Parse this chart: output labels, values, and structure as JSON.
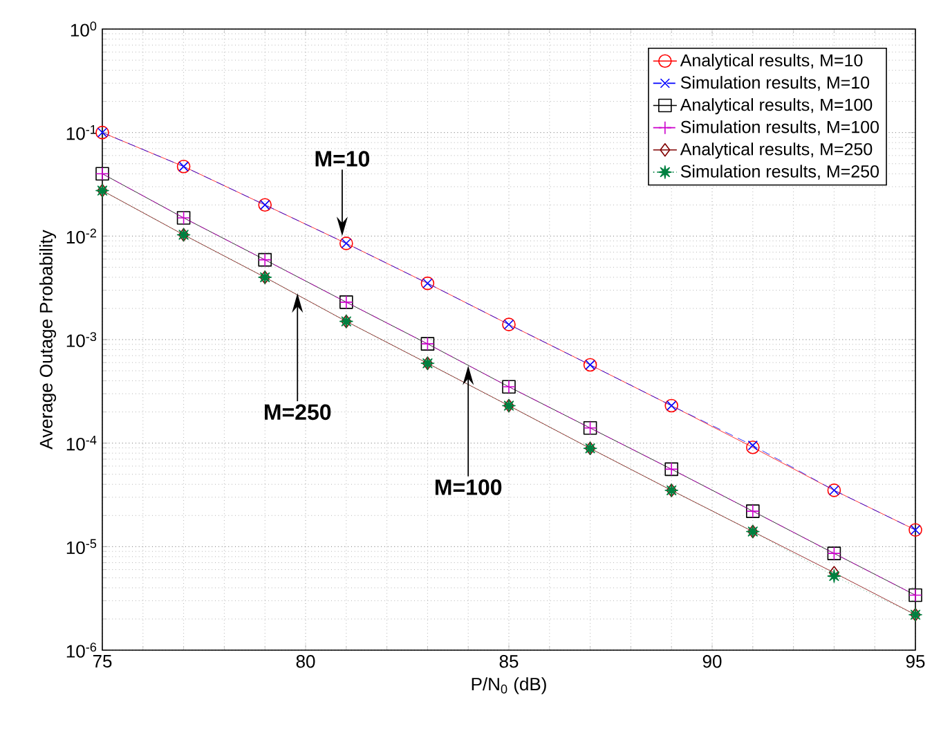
{
  "chart_data": {
    "type": "line",
    "xlabel": "P/N$_{0}$ (dB)",
    "ylabel": "Average Outage Probability",
    "x": [
      75,
      77,
      79,
      81,
      83,
      85,
      87,
      89,
      91,
      93,
      95
    ],
    "series": [
      {
        "name": "Analytical results, M=10",
        "color": "#ff0000",
        "marker": "circle",
        "line_style": "solid",
        "values": [
          0.1,
          0.047,
          0.02,
          0.0085,
          0.0035,
          0.0014,
          0.00057,
          0.00023,
          9.1e-05,
          3.5e-05,
          1.45e-05
        ]
      },
      {
        "name": "Simulation results, M=10",
        "color": "#0000ff",
        "marker": "cross",
        "line_style": "dashed",
        "values": [
          0.1,
          0.047,
          0.02,
          0.0085,
          0.0035,
          0.0014,
          0.00057,
          0.00023,
          9.5e-05,
          3.5e-05,
          1.45e-05
        ]
      },
      {
        "name": "Analytical results, M=100",
        "color": "#000000",
        "marker": "square",
        "line_style": "solid",
        "values": [
          0.04,
          0.015,
          0.0059,
          0.0023,
          0.00091,
          0.00035,
          0.00014,
          5.6e-05,
          2.2e-05,
          8.6e-06,
          3.4e-06
        ]
      },
      {
        "name": "Simulation results, M=100",
        "color": "#cc00cc",
        "marker": "plus",
        "line_style": "dashed",
        "values": [
          0.04,
          0.015,
          0.0059,
          0.0023,
          0.00091,
          0.00035,
          0.00014,
          5.6e-05,
          2.2e-05,
          8.6e-06,
          3.4e-06
        ]
      },
      {
        "name": "Analytical results, M=250",
        "color": "#800000",
        "marker": "diamond",
        "line_style": "solid",
        "values": [
          0.0275,
          0.0103,
          0.004,
          0.0015,
          0.00059,
          0.00023,
          8.9e-05,
          3.5e-05,
          1.4e-05,
          5.6e-06,
          2.2e-06
        ]
      },
      {
        "name": "Simulation results, M=250",
        "color": "#008040",
        "marker": "star",
        "line_style": "dotted",
        "values": [
          0.0275,
          0.0103,
          0.004,
          0.0015,
          0.00059,
          0.00023,
          8.9e-05,
          3.5e-05,
          1.4e-05,
          5.2e-06,
          2.2e-06
        ]
      }
    ],
    "xlim": [
      75,
      95
    ],
    "xticks": [
      75,
      80,
      85,
      90,
      95
    ],
    "ylim": [
      1e-06,
      1
    ],
    "yticks": [
      {
        "value": 1e-06,
        "label": "10$^{-6}$"
      },
      {
        "value": 1e-05,
        "label": "10$^{-5}$"
      },
      {
        "value": 0.0001,
        "label": "10$^{-4}$"
      },
      {
        "value": 0.001,
        "label": "10$^{-3}$"
      },
      {
        "value": 0.01,
        "label": "10$^{-2}$"
      },
      {
        "value": 0.1,
        "label": "10$^{-1}$"
      },
      {
        "value": 1,
        "label": "10$^{0}$"
      }
    ],
    "log": true,
    "grid": true,
    "legend": "top right",
    "annotations": [
      {
        "text": "M=10",
        "x": 80.9,
        "y": 0.01
      },
      {
        "text": "M=250",
        "x": 79.8,
        "y": 0.0028
      },
      {
        "text": "M=100",
        "x": 84.0,
        "y": 0.00056
      }
    ]
  }
}
